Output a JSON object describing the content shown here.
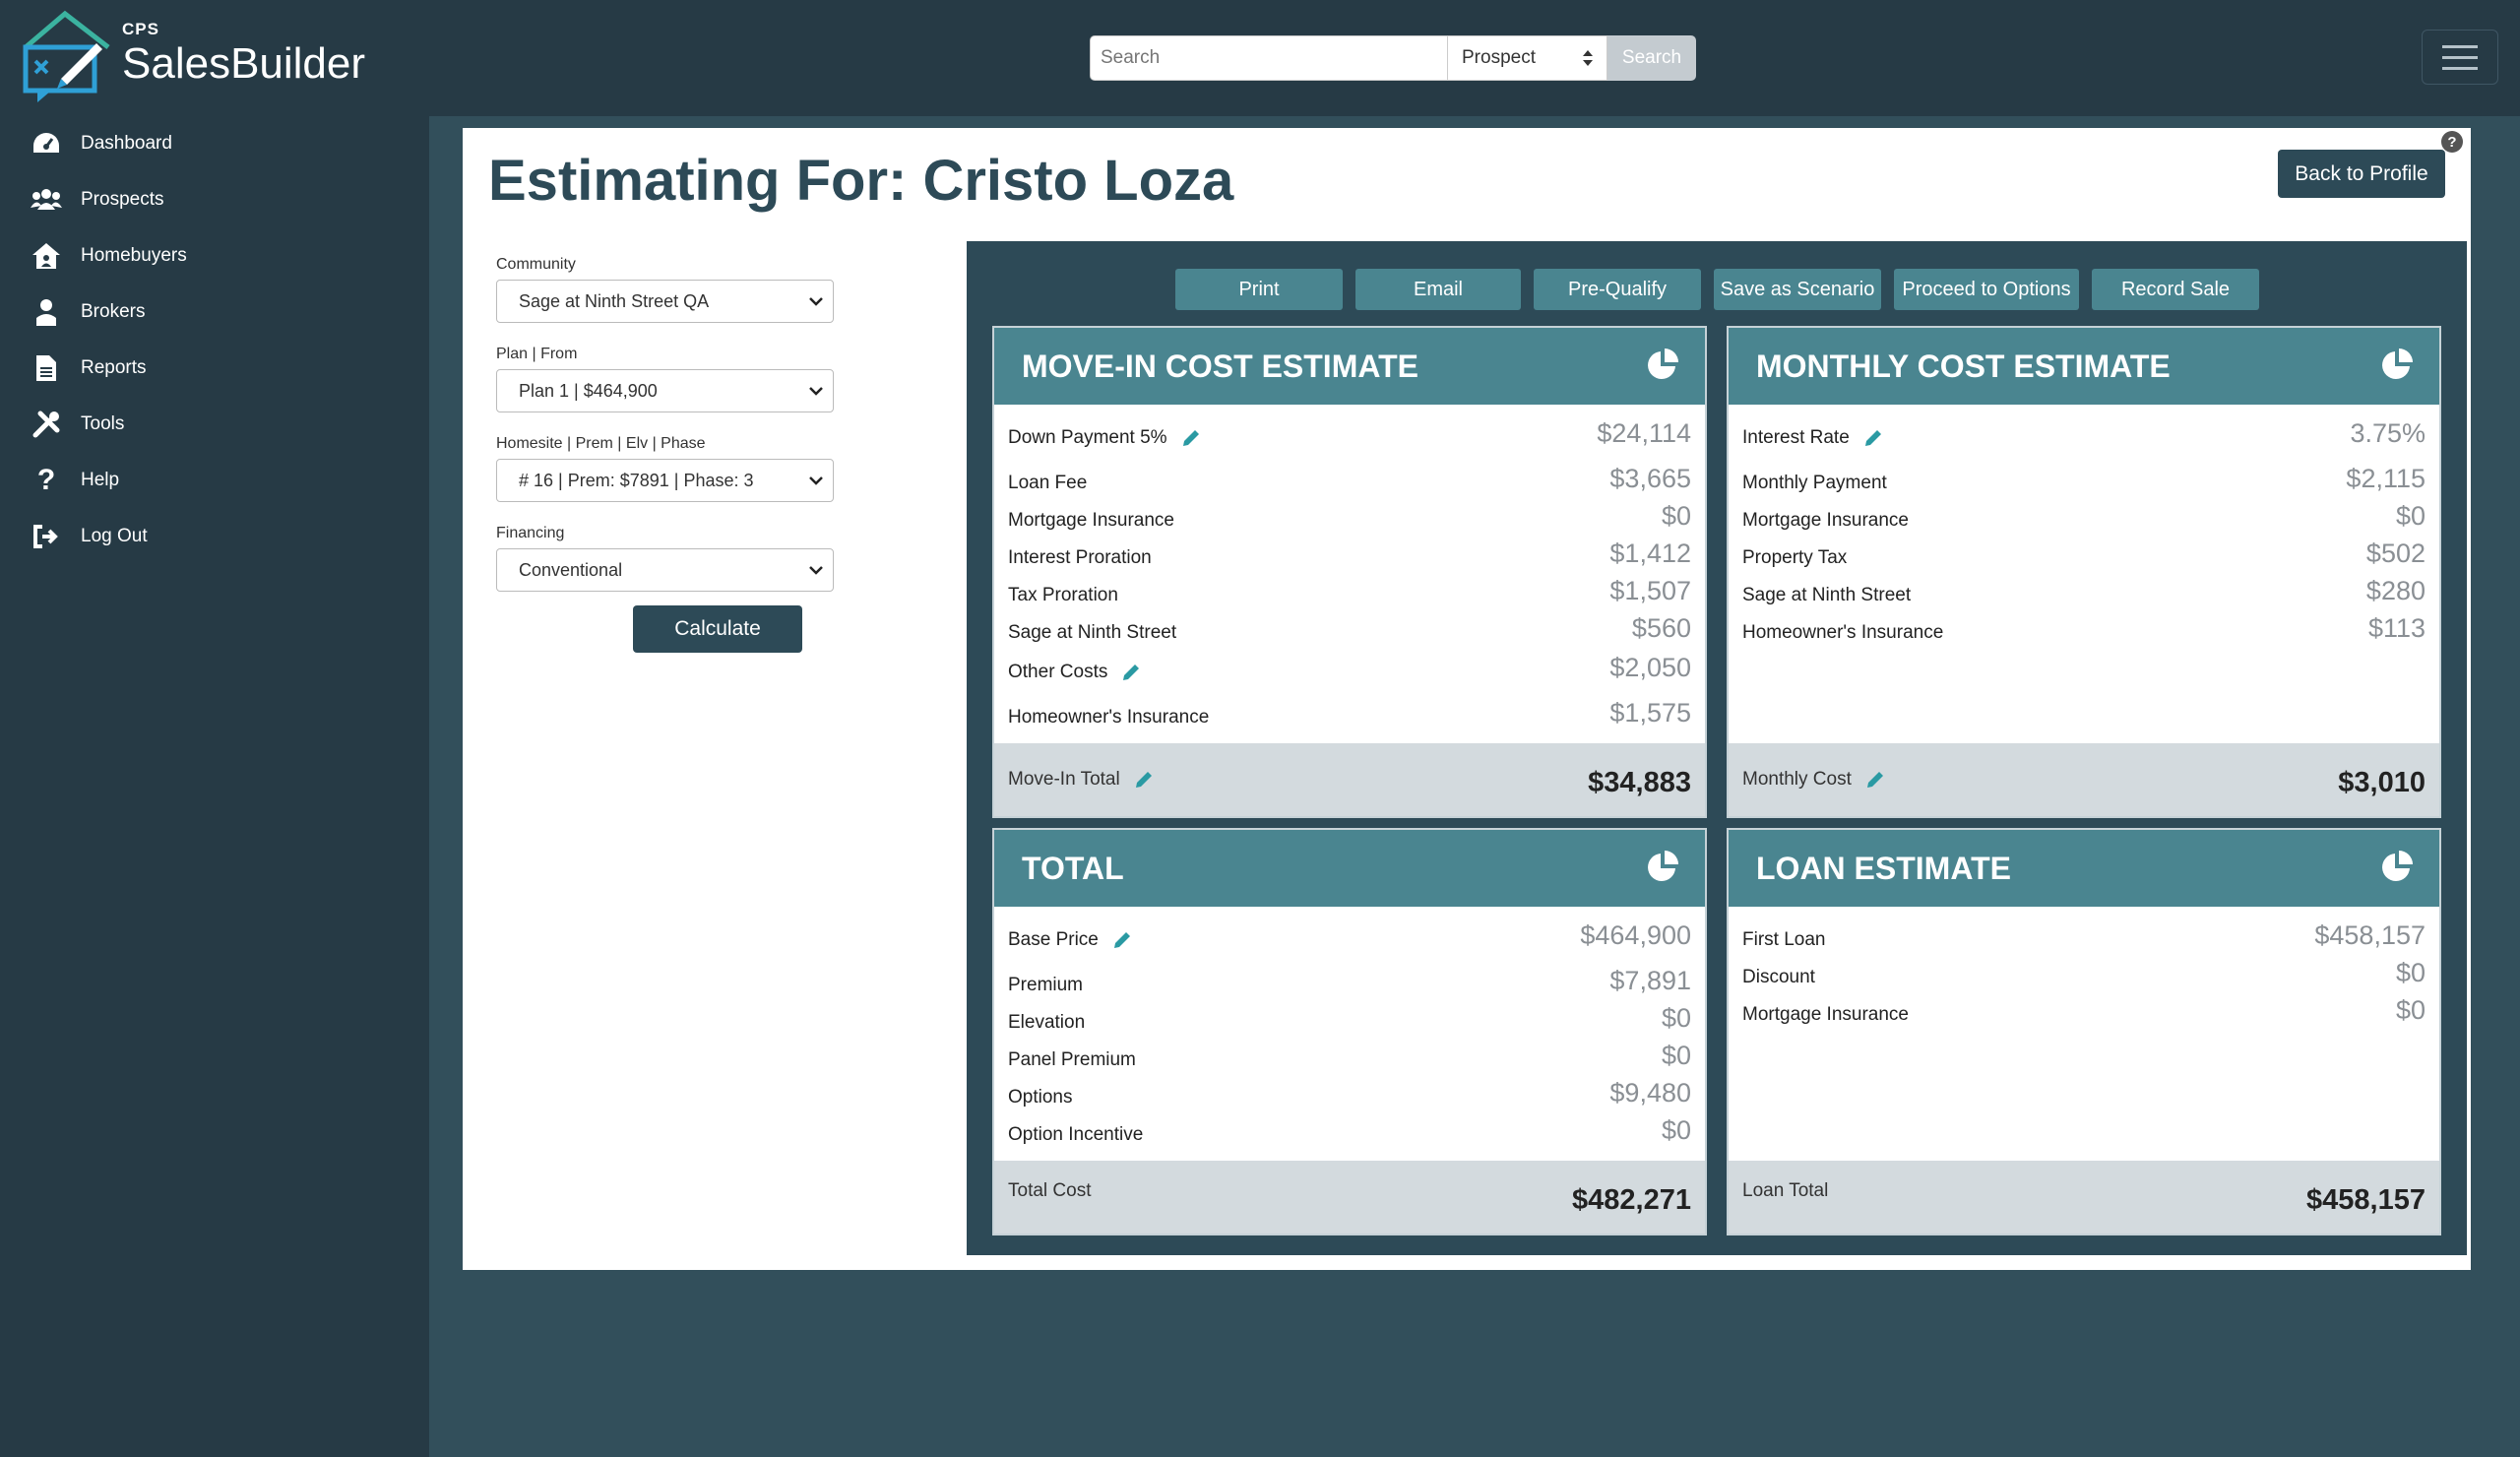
{
  "brand": {
    "small": "CPS",
    "name": "SalesBuilder"
  },
  "search": {
    "placeholder": "Search",
    "type_selected": "Prospect",
    "button": "Search"
  },
  "sidebar": {
    "items": [
      {
        "label": "Dashboard",
        "icon": "dashboard-icon"
      },
      {
        "label": "Prospects",
        "icon": "users-icon"
      },
      {
        "label": "Homebuyers",
        "icon": "house-icon"
      },
      {
        "label": "Brokers",
        "icon": "person-icon"
      },
      {
        "label": "Reports",
        "icon": "document-icon"
      },
      {
        "label": "Tools",
        "icon": "tools-icon"
      },
      {
        "label": "Help",
        "icon": "question-icon"
      },
      {
        "label": "Log Out",
        "icon": "logout-icon"
      }
    ]
  },
  "page": {
    "title": "Estimating For: Cristo Loza",
    "back_button": "Back to Profile",
    "help": "?"
  },
  "form": {
    "community": {
      "label": "Community",
      "value": "Sage at Ninth Street QA"
    },
    "plan": {
      "label": "Plan | From",
      "value": "Plan 1 | $464,900"
    },
    "homesite": {
      "label": "Homesite | Prem | Elv | Phase",
      "value": "# 16 | Prem: $7891 | Phase: 3"
    },
    "financing": {
      "label": "Financing",
      "value": "Conventional"
    },
    "calculate": "Calculate"
  },
  "actions": [
    "Print",
    "Email",
    "Pre-Qualify",
    "Save as Scenario",
    "Proceed to Options",
    "Record Sale"
  ],
  "cards": {
    "movein": {
      "title": "MOVE-IN COST ESTIMATE",
      "rows": [
        {
          "label": "Down Payment 5%",
          "value": "$24,114"
        },
        {
          "label": "Loan Fee",
          "value": "$3,665"
        },
        {
          "label": "Mortgage Insurance",
          "value": "$0"
        },
        {
          "label": "Interest Proration",
          "value": "$1,412"
        },
        {
          "label": "Tax Proration",
          "value": "$1,507"
        },
        {
          "label": "Sage at Ninth Street",
          "value": "$560"
        },
        {
          "label": "Other Costs",
          "value": "$2,050"
        },
        {
          "label": "Homeowner's Insurance",
          "value": "$1,575"
        }
      ],
      "footer_label": "Move-In Total",
      "footer_value": "$34,883"
    },
    "monthly": {
      "title": "MONTHLY COST ESTIMATE",
      "rows": [
        {
          "label": "Interest Rate",
          "value": "3.75%"
        },
        {
          "label": "Monthly Payment",
          "value": "$2,115"
        },
        {
          "label": "Mortgage Insurance",
          "value": "$0"
        },
        {
          "label": "Property Tax",
          "value": "$502"
        },
        {
          "label": "Sage at Ninth Street",
          "value": "$280"
        },
        {
          "label": "Homeowner's Insurance",
          "value": "$113"
        }
      ],
      "footer_label": "Monthly Cost",
      "footer_value": "$3,010"
    },
    "total": {
      "title": "TOTAL",
      "rows": [
        {
          "label": "Base Price",
          "value": "$464,900"
        },
        {
          "label": "Premium",
          "value": "$7,891"
        },
        {
          "label": "Elevation",
          "value": "$0"
        },
        {
          "label": "Panel Premium",
          "value": "$0"
        },
        {
          "label": "Options",
          "value": "$9,480"
        },
        {
          "label": "Option Incentive",
          "value": "$0"
        }
      ],
      "footer_label": "Total Cost",
      "footer_value": "$482,271"
    },
    "loan": {
      "title": "LOAN ESTIMATE",
      "rows": [
        {
          "label": "First Loan",
          "value": "$458,157"
        },
        {
          "label": "Discount",
          "value": "$0"
        },
        {
          "label": "Mortgage Insurance",
          "value": "$0"
        }
      ],
      "footer_label": "Loan Total",
      "footer_value": "$458,157"
    }
  },
  "colors": {
    "sidebar": "#263a45",
    "background": "#324f5b",
    "accent": "#4a8590",
    "dark": "#2d4a57",
    "edit": "#2a9aa3"
  }
}
